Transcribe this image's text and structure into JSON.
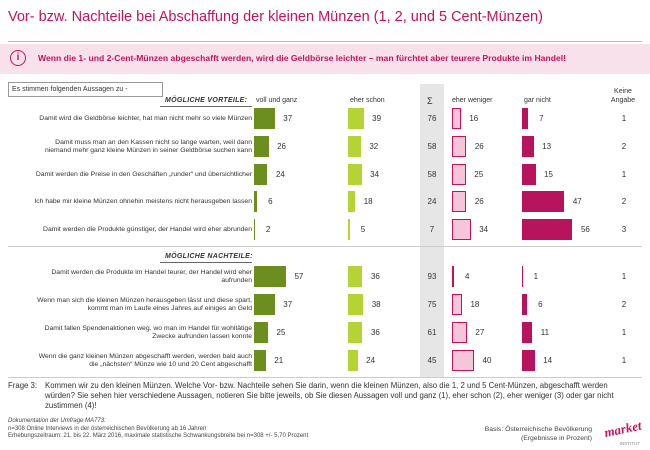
{
  "title": "Vor- bzw. Nachteile bei Abschaffung der kleinen Münzen (1, 2, und 5 Cent-Münzen)",
  "banner_text": "Wenn die 1- und 2-Cent-Münzen abgeschafft werden, wird die Geldbörse leichter – man fürchtet aber teurere Produkte im Handel!",
  "intro_box": "Es stimmen folgenden Aussagen zu -",
  "columns": {
    "voll": "voll und ganz",
    "eher_schon": "eher schon",
    "sigma": "Σ",
    "eher_weniger": "eher weniger",
    "gar_nicht": "gar nicht",
    "keine_angabe_1": "Keine",
    "keine_angabe_2": "Angabe"
  },
  "colors": {
    "voll": "#6b8e1f",
    "eher_schon": "#b5d334",
    "eher_weniger": "#f5c6d9",
    "gar_nicht": "#b8145e",
    "accent": "#c4125d"
  },
  "chart_data": {
    "type": "bar",
    "series_names": [
      "voll und ganz",
      "eher schon",
      "eher weniger",
      "gar nicht"
    ],
    "sections": [
      {
        "heading": "MÖGLICHE VORTEILE:",
        "rows": [
          {
            "label": "Damit wird die Geldbörse leichter, hat man nicht mehr so viele Münzen",
            "voll": 37,
            "eher_schon": 39,
            "sum": 76,
            "eher_weniger": 16,
            "gar_nicht": 7,
            "keine_angabe": 1
          },
          {
            "label": "Damit muss man an den Kassen nicht so lange warten, weil dann niemand mehr ganz kleine Münzen in seiner Geldbörse suchen kann",
            "voll": 26,
            "eher_schon": 32,
            "sum": 58,
            "eher_weniger": 26,
            "gar_nicht": 13,
            "keine_angabe": 2
          },
          {
            "label": "Damit werden die Preise in den Geschäften „runder“ und übersichtlicher",
            "voll": 24,
            "eher_schon": 34,
            "sum": 58,
            "eher_weniger": 25,
            "gar_nicht": 15,
            "keine_angabe": 1
          },
          {
            "label": "Ich habe mir kleine Münzen ohnehin meistens nicht herausgeben lassen",
            "voll": 6,
            "eher_schon": 18,
            "sum": 24,
            "eher_weniger": 26,
            "gar_nicht": 47,
            "keine_angabe": 2
          },
          {
            "label": "Damit werden die Produkte günstiger, der Handel wird eher abrunden",
            "voll": 2,
            "eher_schon": 5,
            "sum": 7,
            "eher_weniger": 34,
            "gar_nicht": 56,
            "keine_angabe": 3
          }
        ]
      },
      {
        "heading": "MÖGLICHE NACHTEILE:",
        "rows": [
          {
            "label": "Damit werden die Produkte im Handel teurer, der Handel wird eher aufrunden",
            "voll": 57,
            "eher_schon": 36,
            "sum": 93,
            "eher_weniger": 4,
            "gar_nicht": 1,
            "keine_angabe": 1
          },
          {
            "label": "Wenn man sich die kleinen Münzen herausgeben lässt und diese spart, kommt man im Laufe eines Jahres auf einiges an Geld",
            "voll": 37,
            "eher_schon": 38,
            "sum": 75,
            "eher_weniger": 18,
            "gar_nicht": 6,
            "keine_angabe": 2
          },
          {
            "label": "Damit fallen Spendenaktionen weg, wo man im Handel für wohltätige Zwecke aufrunden lassen konnte",
            "voll": 25,
            "eher_schon": 36,
            "sum": 61,
            "eher_weniger": 27,
            "gar_nicht": 11,
            "keine_angabe": 1
          },
          {
            "label": "Wenn die ganz kleinen Münzen abgeschafft werden, werden bald auch die „nächsten“ Münze wie 10 und 20 Cent abgeschafft",
            "voll": 21,
            "eher_schon": 24,
            "sum": 45,
            "eher_weniger": 40,
            "gar_nicht": 14,
            "keine_angabe": 1
          }
        ]
      }
    ]
  },
  "frage_label": "Frage 3:",
  "frage_text": "Kommen wir zu den kleinen Münzen. Welche Vor- bzw. Nachteile sehen Sie darin, wenn die kleinen Münzen, also die 1, 2 und 5 Cent-Münzen, abgeschafft werden würden? Sie sehen hier verschiedene Aussagen, notieren Sie bitte jeweils, ob Sie diesen Aussagen voll und ganz (1), eher schon (2), eher weniger (3) oder gar nicht zustimmen (4)!",
  "doc_title": "Dokumentation der Umfrage MA773:",
  "doc_line1": "n=308 Online Interviews in der österreichischen Bevölkerung ab 16 Jahren",
  "doc_line2": "Erhebungszeitraum: 21. bis 22. März 2016, maximale statistische Schwankungsbreite bei n=308 +/- 5,70 Prozent",
  "basis_line1": "Basis: Österreichische Bevölkerung",
  "basis_line2": "(Ergebnisse in Prozent)",
  "logo_text_1": "market",
  "logo_text_2": "INSTITUT"
}
